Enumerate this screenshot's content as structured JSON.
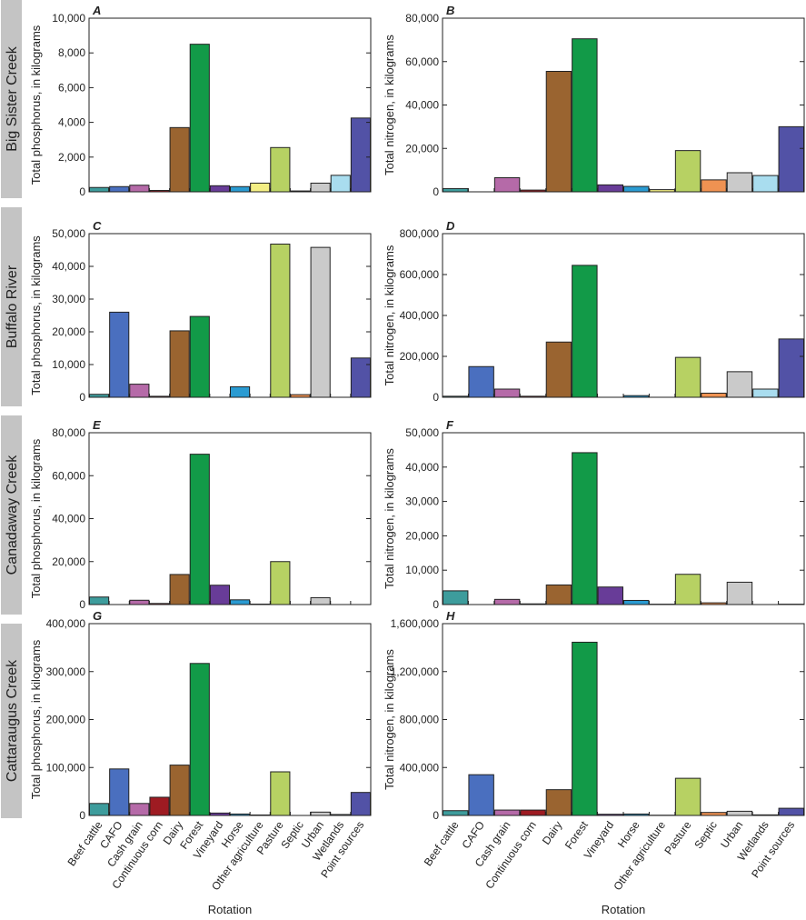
{
  "chart_data": {
    "type": "bar",
    "categories": [
      "Beef cattle",
      "CAFO",
      "Cash grain",
      "Continuous corn",
      "Dairy",
      "Forest",
      "Vineyard",
      "Horse",
      "Other agriculture",
      "Pasture",
      "Septic",
      "Urban",
      "Wetlands",
      "Point sources"
    ],
    "colors": [
      "#3d9c9c",
      "#4a6fbf",
      "#b56aa8",
      "#9e1b22",
      "#9a6430",
      "#129a48",
      "#683c98",
      "#2a9bd2",
      "#f4ef84",
      "#b7d163",
      "#ef9252",
      "#cacaca",
      "#a9ddef",
      "#5252a6"
    ],
    "xlabel": "Rotation",
    "rows": [
      "Big Sister Creek",
      "Buffalo River",
      "Canadaway Creek",
      "Cattaraugus Creek"
    ],
    "panels": [
      {
        "letter": "A",
        "row": 0,
        "col": 0,
        "ylabel": "Total phosphorus, in kilograms",
        "ylim": [
          0,
          10000
        ],
        "yticks": [
          "0",
          "2,000",
          "4,000",
          "6,000",
          "8,000",
          "10,000"
        ],
        "values": [
          250,
          300,
          380,
          80,
          3700,
          8500,
          350,
          300,
          500,
          2550,
          50,
          500,
          950,
          4250
        ]
      },
      {
        "letter": "B",
        "row": 0,
        "col": 1,
        "ylabel": "Total nitrogen, in kilograms",
        "ylim": [
          0,
          80000
        ],
        "yticks": [
          "0",
          "20,000",
          "40,000",
          "60,000",
          "80,000"
        ],
        "values": [
          1500,
          0,
          6500,
          800,
          55500,
          70500,
          3200,
          2500,
          1000,
          19000,
          5500,
          8800,
          7500,
          30000
        ]
      },
      {
        "letter": "C",
        "row": 1,
        "col": 0,
        "ylabel": "Total phosphorus, in kilograms",
        "ylim": [
          0,
          50000
        ],
        "yticks": [
          "0",
          "10,000",
          "20,000",
          "30,000",
          "40,000",
          "50,000"
        ],
        "values": [
          900,
          26000,
          4000,
          300,
          20300,
          24700,
          0,
          3200,
          0,
          46800,
          800,
          45800,
          0,
          12000
        ]
      },
      {
        "letter": "D",
        "row": 1,
        "col": 1,
        "ylabel": "Total nitrogen, in kilograms",
        "ylim": [
          0,
          800000
        ],
        "yticks": [
          "0",
          "200,000",
          "400,000",
          "600,000",
          "800,000"
        ],
        "values": [
          5000,
          150000,
          40000,
          5000,
          270000,
          645000,
          0,
          8000,
          0,
          195000,
          20000,
          125000,
          40000,
          285000
        ]
      },
      {
        "letter": "E",
        "row": 2,
        "col": 0,
        "ylabel": "Total phosphorus, in kilograms",
        "ylim": [
          0,
          80000
        ],
        "yticks": [
          "0",
          "20,000",
          "40,000",
          "60,000",
          "80,000"
        ],
        "values": [
          3500,
          0,
          2000,
          500,
          14000,
          70000,
          9000,
          2200,
          200,
          20000,
          0,
          3200,
          0,
          0
        ]
      },
      {
        "letter": "F",
        "row": 2,
        "col": 1,
        "ylabel": "Total nitrogen, in kilograms",
        "ylim": [
          0,
          50000
        ],
        "yticks": [
          "0",
          "10,000",
          "20,000",
          "30,000",
          "40,000",
          "50,000"
        ],
        "values": [
          4000,
          0,
          1500,
          200,
          5700,
          44200,
          5100,
          1200,
          100,
          8800,
          500,
          6500,
          0,
          100
        ]
      },
      {
        "letter": "G",
        "row": 3,
        "col": 0,
        "ylabel": "Total phosphorus, in kilograms",
        "ylim": [
          0,
          400000
        ],
        "yticks": [
          "0",
          "100,000",
          "200,000",
          "300,000",
          "400,000"
        ],
        "values": [
          25000,
          97000,
          25000,
          38000,
          105000,
          317000,
          5000,
          3000,
          1000,
          91000,
          0,
          7000,
          2000,
          48000
        ]
      },
      {
        "letter": "H",
        "row": 3,
        "col": 1,
        "ylabel": "Total nitrogen, in kilograms",
        "ylim": [
          0,
          1600000
        ],
        "yticks": [
          "0",
          "400,000",
          "800,000",
          "1,200,000",
          "1,600,000"
        ],
        "values": [
          40000,
          340000,
          45000,
          45000,
          215000,
          1445000,
          10000,
          12000,
          2000,
          310000,
          25000,
          35000,
          5000,
          60000
        ]
      }
    ]
  }
}
